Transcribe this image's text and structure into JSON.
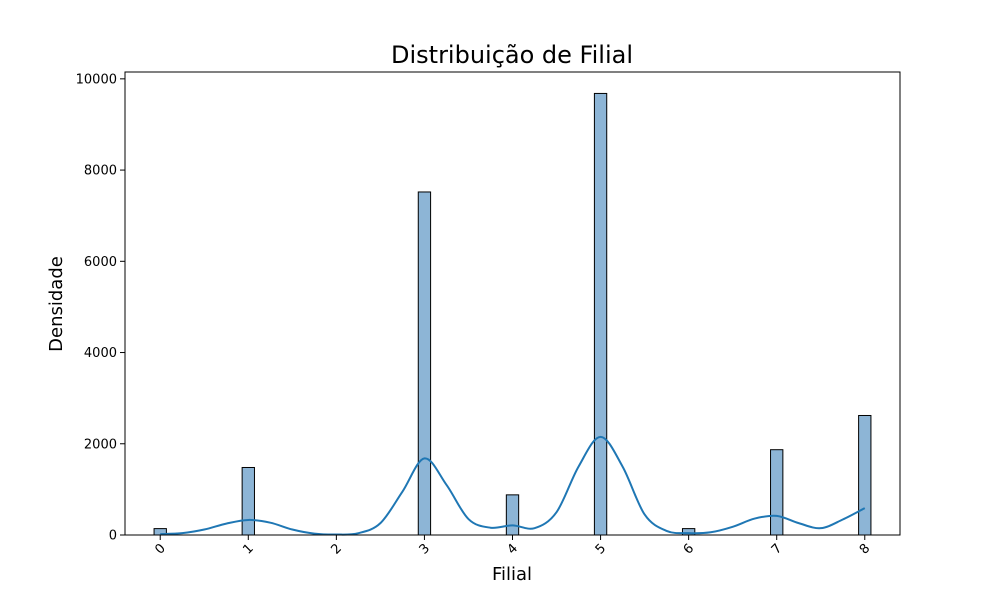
{
  "chart_data": {
    "type": "bar",
    "title": "Distribuição de Filial",
    "xlabel": "Filial",
    "ylabel": "Densidade",
    "x_ticks": [
      "0",
      "1",
      "2",
      "3",
      "4",
      "5",
      "6",
      "7",
      "8"
    ],
    "y_ticks": [
      "0",
      "2000",
      "4000",
      "6000",
      "8000",
      "10000"
    ],
    "xlim": [
      -0.4,
      8.4
    ],
    "ylim": [
      0,
      10150
    ],
    "bars": [
      {
        "x": 0,
        "value": 140
      },
      {
        "x": 1,
        "value": 1480
      },
      {
        "x": 3,
        "value": 7520
      },
      {
        "x": 4,
        "value": 880
      },
      {
        "x": 5,
        "value": 9680
      },
      {
        "x": 6,
        "value": 140
      },
      {
        "x": 7,
        "value": 1870
      },
      {
        "x": 8,
        "value": 2620
      }
    ],
    "bar_width": 0.14,
    "kde": {
      "x": [
        0,
        0.25,
        0.5,
        0.75,
        1,
        1.25,
        1.5,
        1.75,
        2,
        2.25,
        2.5,
        2.75,
        3,
        3.25,
        3.5,
        3.75,
        4,
        4.25,
        4.5,
        4.75,
        5,
        5.25,
        5.5,
        5.75,
        6,
        6.25,
        6.5,
        6.75,
        7,
        7.25,
        7.5,
        7.75,
        8
      ],
      "y": [
        20,
        40,
        120,
        250,
        330,
        270,
        120,
        30,
        10,
        40,
        260,
        950,
        1680,
        1100,
        350,
        160,
        210,
        150,
        500,
        1500,
        2150,
        1500,
        450,
        90,
        40,
        60,
        180,
        360,
        420,
        260,
        150,
        340,
        590
      ]
    },
    "grid": false,
    "legend": "none",
    "colors": {
      "bar_fill": "#8db5d6",
      "bar_edge": "#000000",
      "kde_line": "#1f77b4"
    }
  }
}
